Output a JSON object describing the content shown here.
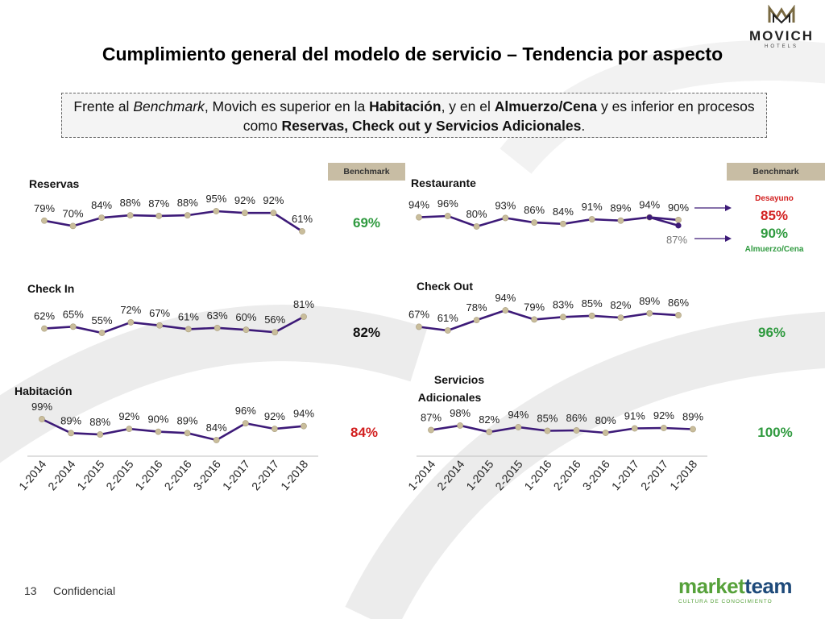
{
  "title": "Cumplimiento general del modelo de servicio – Tendencia por aspecto",
  "summary": {
    "p1": "Frente al ",
    "p2": "Benchmark",
    "p3": ", Movich es superior en la ",
    "p4": "Habitación",
    "p5": ", y en el ",
    "p6": "Almuerzo/Cena",
    "p7": " y es inferior en procesos como ",
    "p8": "Reservas, Check out y Servicios Adicionales",
    "p9": "."
  },
  "benchmark_header": "Benchmark",
  "logo": {
    "name": "MOVICH",
    "sub": "HOTELS"
  },
  "footer": {
    "page": "13",
    "label": "Confidencial"
  },
  "marketteam": {
    "word1": "market",
    "word2": "team",
    "tagline": "CULTURA DE CONOCIMIENTO"
  },
  "colors": {
    "line": "#3d1a78",
    "marker": "#c9bd9b",
    "green": "#2f9a3f",
    "red": "#d21f1f",
    "dark": "#111111"
  },
  "chart_data": {
    "type": "line",
    "categories": [
      "1-2014",
      "2-2014",
      "1-2015",
      "2-2015",
      "1-2016",
      "2-2016",
      "3-2016",
      "1-2017",
      "2-2017",
      "1-2018"
    ],
    "panels": [
      {
        "name": "Reservas",
        "values": [
          79,
          70,
          84,
          88,
          87,
          88,
          95,
          92,
          92,
          61
        ],
        "labels": [
          "79%",
          "70%",
          "84%",
          "88%",
          "87%",
          "88%",
          "95%",
          "92%",
          "92%",
          "61%"
        ],
        "benchmark": "69%",
        "benchmark_color": "green"
      },
      {
        "name": "Restaurante",
        "values": [
          94,
          96,
          80,
          93,
          86,
          84,
          91,
          89,
          94,
          90
        ],
        "labels": [
          "94%",
          "96%",
          "80%",
          "93%",
          "86%",
          "84%",
          "91%",
          "89%",
          "94%",
          "90%"
        ],
        "extra_point": {
          "value": 87,
          "label": "87%"
        },
        "bench_items": [
          {
            "caption": "Desayuno",
            "value": "85%",
            "color": "red"
          },
          {
            "caption": "Almuerzo/Cena",
            "value": "90%",
            "color": "green"
          }
        ]
      },
      {
        "name": "Check In",
        "values": [
          62,
          65,
          55,
          72,
          67,
          61,
          63,
          60,
          56,
          81
        ],
        "labels": [
          "62%",
          "65%",
          "55%",
          "72%",
          "67%",
          "61%",
          "63%",
          "60%",
          "56%",
          "81%"
        ],
        "benchmark": "82%",
        "benchmark_color": "dark"
      },
      {
        "name": "Check Out",
        "values": [
          67,
          61,
          78,
          94,
          79,
          83,
          85,
          82,
          89,
          86
        ],
        "labels": [
          "67%",
          "61%",
          "78%",
          "94%",
          "79%",
          "83%",
          "85%",
          "82%",
          "89%",
          "86%"
        ],
        "benchmark": "96%",
        "benchmark_color": "green"
      },
      {
        "name": "Habitación",
        "values": [
          99,
          89,
          88,
          92,
          90,
          89,
          84,
          96,
          92,
          94
        ],
        "labels": [
          "99%",
          "89%",
          "88%",
          "92%",
          "90%",
          "89%",
          "84%",
          "96%",
          "92%",
          "94%"
        ],
        "benchmark": "84%",
        "benchmark_color": "red"
      },
      {
        "name": "Servicios Adicionales",
        "name_lines": [
          "Servicios",
          "Adicionales"
        ],
        "values": [
          87,
          98,
          82,
          94,
          85,
          86,
          80,
          91,
          92,
          89
        ],
        "labels": [
          "87%",
          "98%",
          "82%",
          "94%",
          "85%",
          "86%",
          "80%",
          "91%",
          "92%",
          "89%"
        ],
        "benchmark": "100%",
        "benchmark_color": "green"
      }
    ]
  }
}
